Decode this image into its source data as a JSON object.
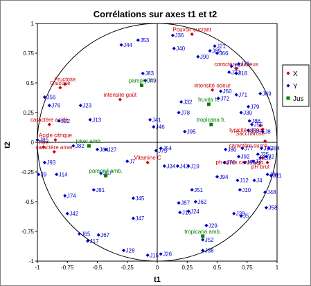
{
  "chart_data": {
    "type": "scatter",
    "title": "Corrélations sur axes t1 et t2",
    "xlabel": "t1",
    "ylabel": "t2",
    "xlim": [
      -1,
      1
    ],
    "ylim": [
      -1,
      1
    ],
    "x_ticks": [
      "-1",
      "-0.75",
      "-0.5",
      "-0.25",
      "0",
      "0.25",
      "0.5",
      "0.75",
      "1"
    ],
    "y_ticks": [
      "1",
      "0.75",
      "0.5",
      "0.25",
      "0",
      "-0.25",
      "-0.5",
      "-0.75",
      "-1"
    ],
    "x_tick_values": [
      -1,
      -0.75,
      -0.5,
      -0.25,
      0,
      0.25,
      0.5,
      0.75,
      1
    ],
    "y_tick_values": [
      1,
      0.75,
      0.5,
      0.25,
      0,
      -0.25,
      -0.5,
      -0.75,
      -1
    ],
    "unit_circle": true,
    "grid": false,
    "legend_position": "right",
    "legend": [
      {
        "name": "X",
        "color": "#cc0000",
        "marker": "diamond"
      },
      {
        "name": "Y",
        "color": "#0000cc",
        "marker": "diamond"
      },
      {
        "name": "Jus",
        "color": "#008000",
        "marker": "square"
      }
    ],
    "series": [
      {
        "name": "X",
        "color": "#cc0000",
        "marker": "diamond",
        "points": [
          {
            "label": "Pouvoir sucrant",
            "x": 0.29,
            "y": 0.91
          },
          {
            "label": "caractère pulpeux",
            "x": 0.66,
            "y": 0.62
          },
          {
            "label": "intensité odeur",
            "x": 0.46,
            "y": 0.44
          },
          {
            "label": "Fructose",
            "x": -0.77,
            "y": 0.49
          },
          {
            "label": "Glucose",
            "x": -0.81,
            "y": 0.46
          },
          {
            "label": "intensité goût",
            "x": -0.31,
            "y": 0.36
          },
          {
            "label": "typicité odeur",
            "x": 0.86,
            "y": 0.14
          },
          {
            "label": "Saccharose",
            "x": 0.88,
            "y": 0.11
          },
          {
            "label": "caractère sucré",
            "x": 0.9,
            "y": 0.01
          },
          {
            "label": "caractère acide",
            "x": -0.9,
            "y": 0.15
          },
          {
            "label": "Acide citrique",
            "x": -0.85,
            "y": 0.02
          },
          {
            "label": "Titre",
            "x": -0.95,
            "y": -0.04
          },
          {
            "label": "caractère amer",
            "x": -0.86,
            "y": -0.08
          },
          {
            "label": "ph après centrifuga.",
            "x": 0.88,
            "y": -0.13
          },
          {
            "label": "pH brut",
            "x": 0.92,
            "y": -0.17
          },
          {
            "label": "Vitamine C",
            "x": -0.08,
            "y": -0.17
          }
        ]
      },
      {
        "name": "Y",
        "color": "#0000cc",
        "marker": "diamond",
        "points": [
          {
            "label": "J36",
            "x": 0.13,
            "y": 0.9
          },
          {
            "label": "J44",
            "x": -0.3,
            "y": 0.82
          },
          {
            "label": "J53",
            "x": -0.16,
            "y": 0.86
          },
          {
            "label": "J40",
            "x": 0.14,
            "y": 0.79
          },
          {
            "label": "J21",
            "x": 0.48,
            "y": 0.81
          },
          {
            "label": "J89",
            "x": 0.44,
            "y": 0.77
          },
          {
            "label": "J66",
            "x": 0.5,
            "y": 0.75
          },
          {
            "label": "J90",
            "x": 0.34,
            "y": 0.72
          },
          {
            "label": "J73",
            "x": 0.68,
            "y": 0.66
          },
          {
            "label": "J1",
            "x": 0.62,
            "y": 0.64
          },
          {
            "label": "J33",
            "x": 0.6,
            "y": 0.59
          },
          {
            "label": "J18",
            "x": 0.66,
            "y": 0.58
          },
          {
            "label": "J83",
            "x": -0.12,
            "y": 0.58
          },
          {
            "label": "J49",
            "x": -0.1,
            "y": 0.52
          },
          {
            "label": "J50",
            "x": 0.53,
            "y": 0.43
          },
          {
            "label": "J69",
            "x": 0.86,
            "y": 0.41
          },
          {
            "label": "J71",
            "x": 0.66,
            "y": 0.4
          },
          {
            "label": "J72",
            "x": 0.51,
            "y": 0.37
          },
          {
            "label": "J32",
            "x": 0.2,
            "y": 0.34
          },
          {
            "label": "J79",
            "x": 0.76,
            "y": 0.3
          },
          {
            "label": "J56",
            "x": -0.94,
            "y": 0.38
          },
          {
            "label": "J76",
            "x": -0.9,
            "y": 0.31
          },
          {
            "label": "J23",
            "x": -0.64,
            "y": 0.31
          },
          {
            "label": "J30",
            "x": 0.7,
            "y": 0.25
          },
          {
            "label": "J78",
            "x": 0.18,
            "y": 0.25
          },
          {
            "label": "J22",
            "x": -0.82,
            "y": 0.18
          },
          {
            "label": "J13",
            "x": -0.56,
            "y": 0.19
          },
          {
            "label": "J41",
            "x": -0.06,
            "y": 0.19
          },
          {
            "label": "J86",
            "x": 0.77,
            "y": 0.18
          },
          {
            "label": "J55",
            "x": 0.79,
            "y": 0.15
          },
          {
            "label": "J46",
            "x": -0.03,
            "y": 0.13
          },
          {
            "label": "J8",
            "x": 0.88,
            "y": 0.09
          },
          {
            "label": "J59",
            "x": 0.76,
            "y": 0.1
          },
          {
            "label": "J95",
            "x": 0.23,
            "y": 0.09
          },
          {
            "label": "J85",
            "x": -1,
            "y": 0.02
          },
          {
            "label": "J82",
            "x": -0.7,
            "y": -0.03
          },
          {
            "label": "J64",
            "x": -0.5,
            "y": -0.06
          },
          {
            "label": "J27",
            "x": -0.43,
            "y": -0.06
          },
          {
            "label": "J75",
            "x": -0.01,
            "y": -0.07
          },
          {
            "label": "J54",
            "x": 0.03,
            "y": -0.05
          },
          {
            "label": "J35",
            "x": 0.87,
            "y": -0.05
          },
          {
            "label": "J84",
            "x": 0.93,
            "y": -0.05
          },
          {
            "label": "J77",
            "x": 0.71,
            "y": -0.05
          },
          {
            "label": "J80",
            "x": 0.57,
            "y": -0.06
          },
          {
            "label": "J25",
            "x": 0.84,
            "y": -0.1
          },
          {
            "label": "J31",
            "x": 0.86,
            "y": -0.13
          },
          {
            "label": "J2",
            "x": 0.91,
            "y": -0.12
          },
          {
            "label": "J93",
            "x": -0.94,
            "y": -0.17
          },
          {
            "label": "J92",
            "x": 0.68,
            "y": -0.12
          },
          {
            "label": "J70",
            "x": 0.56,
            "y": -0.17
          },
          {
            "label": "J96",
            "x": 0.73,
            "y": -0.17
          },
          {
            "label": "J3",
            "x": 0.8,
            "y": -0.16
          },
          {
            "label": "J7",
            "x": -0.25,
            "y": -0.16
          },
          {
            "label": "J43",
            "x": 0.17,
            "y": -0.2
          },
          {
            "label": "J34",
            "x": 0.06,
            "y": -0.2
          },
          {
            "label": "J19",
            "x": 0.26,
            "y": -0.2
          },
          {
            "label": "J57",
            "x": -0.47,
            "y": -0.26
          },
          {
            "label": "J9",
            "x": -0.99,
            "y": -0.27
          },
          {
            "label": "J14",
            "x": -0.84,
            "y": -0.27
          },
          {
            "label": "J60",
            "x": 0.92,
            "y": -0.27
          },
          {
            "label": "J11",
            "x": 0.95,
            "y": -0.28
          },
          {
            "label": "J12",
            "x": 0.67,
            "y": -0.32
          },
          {
            "label": "J94",
            "x": 0.5,
            "y": -0.29
          },
          {
            "label": "J4",
            "x": 0.81,
            "y": -0.32
          },
          {
            "label": "J81",
            "x": -0.53,
            "y": -0.4
          },
          {
            "label": "J10",
            "x": 0.69,
            "y": -0.4
          },
          {
            "label": "J51",
            "x": 0.29,
            "y": -0.4
          },
          {
            "label": "J74",
            "x": -0.77,
            "y": -0.45
          },
          {
            "label": "J48",
            "x": 0.9,
            "y": -0.42
          },
          {
            "label": "J45",
            "x": -0.2,
            "y": -0.47
          },
          {
            "label": "J87",
            "x": 0.18,
            "y": -0.51
          },
          {
            "label": "J62",
            "x": 0.32,
            "y": -0.5
          },
          {
            "label": "J42",
            "x": -0.75,
            "y": -0.6
          },
          {
            "label": "J16",
            "x": 0.19,
            "y": -0.59
          },
          {
            "label": "J24",
            "x": 0.26,
            "y": -0.58
          },
          {
            "label": "J39",
            "x": 0.64,
            "y": -0.6
          },
          {
            "label": "J5",
            "x": 0.7,
            "y": -0.62
          },
          {
            "label": "J58",
            "x": 0.91,
            "y": -0.55
          },
          {
            "label": "J47",
            "x": -0.2,
            "y": -0.64
          },
          {
            "label": "J29",
            "x": 0.41,
            "y": -0.7
          },
          {
            "label": "J65",
            "x": -0.65,
            "y": -0.77
          },
          {
            "label": "J67",
            "x": -0.49,
            "y": -0.78
          },
          {
            "label": "J17",
            "x": -0.58,
            "y": -0.83
          },
          {
            "label": "J28",
            "x": -0.28,
            "y": -0.91
          },
          {
            "label": "J38",
            "x": 0.38,
            "y": -0.91
          },
          {
            "label": "J15",
            "x": -0.08,
            "y": -0.95
          },
          {
            "label": "J26",
            "x": 0.03,
            "y": -0.94
          },
          {
            "label": "J52",
            "x": 0.38,
            "y": -0.82
          }
        ]
      },
      {
        "name": "Jus",
        "color": "#008000",
        "marker": "square",
        "points": [
          {
            "label": "pampryl fr.",
            "x": -0.13,
            "y": 0.48
          },
          {
            "label": "fruvita fr.",
            "x": 0.43,
            "y": 0.32
          },
          {
            "label": "tropicana fr.",
            "x": 0.45,
            "y": 0.15
          },
          {
            "label": "joker amb.",
            "x": -0.57,
            "y": -0.03
          },
          {
            "label": "pampryl amb.",
            "x": -0.43,
            "y": -0.28
          },
          {
            "label": "tropicana amb.",
            "x": 0.38,
            "y": -0.79
          }
        ]
      }
    ]
  }
}
